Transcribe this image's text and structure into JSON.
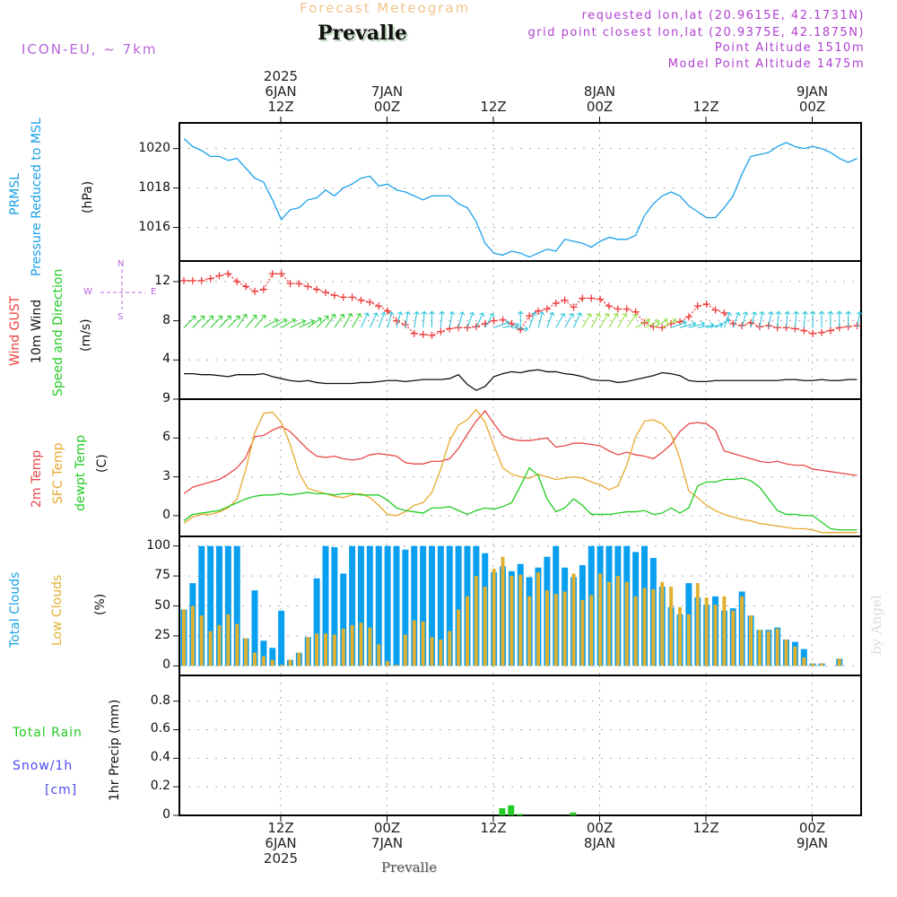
{
  "header": {
    "title": "Forecast Meteogram",
    "station": "Prevalle",
    "model": "ICON-EU, ~ 7km",
    "requested": "requested lon,lat (20.9615E, 42.1731N)",
    "gridpoint": "grid point closest lon,lat (20.9375E, 42.1875N)",
    "point_altitude": "Point Altitude 1510m",
    "model_altitude": "Model Point Altitude 1475m"
  },
  "top_axis": [
    {
      "l1": "2025",
      "l2": "6JAN",
      "l3": "12Z",
      "h": 12
    },
    {
      "l1": "",
      "l2": "7JAN",
      "l3": "00Z",
      "h": 24
    },
    {
      "l1": "",
      "l2": "",
      "l3": "12Z",
      "h": 36
    },
    {
      "l1": "",
      "l2": "8JAN",
      "l3": "00Z",
      "h": 48
    },
    {
      "l1": "",
      "l2": "",
      "l3": "12Z",
      "h": 60
    },
    {
      "l1": "",
      "l2": "9JAN",
      "l3": "00Z",
      "h": 72
    }
  ],
  "bottom_axis": [
    {
      "l1": "12Z",
      "l2": "6JAN",
      "l3": "2025",
      "h": 12
    },
    {
      "l1": "00Z",
      "l2": "7JAN",
      "l3": "",
      "h": 24
    },
    {
      "l1": "12Z",
      "l2": "",
      "l3": "",
      "h": 36
    },
    {
      "l1": "00Z",
      "l2": "8JAN",
      "l3": "",
      "h": 48
    },
    {
      "l1": "12Z",
      "l2": "",
      "l3": "",
      "h": 60
    },
    {
      "l1": "00Z",
      "l2": "9JAN",
      "l3": "",
      "h": 72
    }
  ],
  "footer_station": "Prevalle",
  "watermark": "by Angel",
  "labels": {
    "p1_a": "PRMSL",
    "p1_b": "Pressure Reduced to MSL",
    "p1_unit": "(hPa)",
    "p2_a": "Wind GUST",
    "p2_b": "10m Wind",
    "p2_c": "Speed and Direction",
    "p2_unit": "(m/s)",
    "compass": {
      "n": "N",
      "s": "S",
      "w": "W",
      "e": "E"
    },
    "p3_a": "2m Temp",
    "p3_b": "SFC Temp",
    "p3_c": "dewpt Temp",
    "p3_unit": "(C)",
    "p4_a": "Total Clouds",
    "p4_b": "Low Clouds",
    "p4_unit": "(%)",
    "p5_a": "Total   Rain",
    "p5_b": "Snow/1h",
    "p5_c": "[cm]",
    "p5_unit": "1hr Precip (mm)"
  },
  "colors": {
    "pressure": "#1aa0e8",
    "gust": "#f03c3c",
    "wind": "#111111",
    "t2m": "#e84848",
    "tsfc": "#e8a830",
    "dewpt": "#20cc20",
    "total_clouds": "#0aa0f0",
    "low_clouds": "#e0b030",
    "rain": "#22cc22"
  },
  "chart_data": [
    {
      "type": "line",
      "title": "PRMSL Pressure Reduced to MSL",
      "ylabel": "(hPa)",
      "ylim": [
        1014.3,
        1021.3
      ],
      "yticks": [
        1016,
        1018,
        1020
      ],
      "x_start_hour": 1,
      "x_step_hours": 1,
      "series": [
        {
          "name": "PRMSL",
          "values": [
            1020.5,
            1020.1,
            1019.9,
            1019.6,
            1019.6,
            1019.4,
            1019.5,
            1019.0,
            1018.5,
            1018.3,
            1017.4,
            1016.4,
            1016.9,
            1017.0,
            1017.4,
            1017.5,
            1017.9,
            1017.6,
            1018.0,
            1018.2,
            1018.5,
            1018.6,
            1018.1,
            1018.2,
            1017.9,
            1017.8,
            1017.6,
            1017.4,
            1017.6,
            1017.6,
            1017.6,
            1017.2,
            1017.0,
            1016.3,
            1015.2,
            1014.7,
            1014.6,
            1014.8,
            1014.7,
            1014.5,
            1014.7,
            1014.9,
            1014.8,
            1015.4,
            1015.3,
            1015.2,
            1015.0,
            1015.3,
            1015.5,
            1015.4,
            1015.4,
            1015.6,
            1016.6,
            1017.2,
            1017.6,
            1017.8,
            1017.6,
            1017.1,
            1016.8,
            1016.5,
            1016.5,
            1017.0,
            1017.6,
            1018.7,
            1019.6,
            1019.7,
            1019.8,
            1020.1,
            1020.3,
            1020.1,
            1020.0,
            1020.1,
            1020.0,
            1019.8,
            1019.5,
            1019.3,
            1019.5
          ]
        }
      ]
    },
    {
      "type": "line",
      "title": "Wind GUST / 10m Wind Speed and Direction",
      "ylabel": "(m/s)",
      "ylim": [
        0,
        14.1
      ],
      "yticks": [
        4,
        8,
        12
      ],
      "x_start_hour": 1,
      "x_step_hours": 1,
      "series": [
        {
          "name": "Wind GUST",
          "values": [
            12.1,
            12.1,
            12.1,
            12.3,
            12.6,
            12.8,
            12.0,
            11.5,
            11.0,
            11.2,
            12.8,
            12.8,
            11.8,
            11.8,
            11.5,
            11.2,
            10.9,
            10.6,
            10.4,
            10.4,
            10.1,
            9.9,
            9.5,
            9.0,
            8.0,
            7.6,
            6.7,
            6.6,
            6.5,
            6.9,
            7.2,
            7.3,
            7.3,
            7.4,
            7.7,
            8.0,
            8.1,
            7.7,
            7.1,
            8.5,
            9.0,
            9.2,
            9.8,
            10.1,
            9.4,
            10.3,
            10.3,
            10.2,
            9.5,
            9.2,
            9.2,
            8.9,
            7.8,
            7.4,
            7.3,
            7.7,
            7.9,
            8.4,
            9.5,
            9.7,
            9.1,
            8.8,
            7.7,
            7.5,
            7.8,
            7.4,
            7.5,
            7.3,
            7.3,
            7.2,
            7.0,
            6.7,
            6.8,
            7.0,
            7.3,
            7.4,
            7.5
          ]
        },
        {
          "name": "10m Wind",
          "values": [
            2.6,
            2.6,
            2.5,
            2.5,
            2.4,
            2.3,
            2.5,
            2.5,
            2.5,
            2.6,
            2.3,
            2.1,
            1.9,
            1.8,
            1.9,
            1.7,
            1.6,
            1.6,
            1.6,
            1.6,
            1.7,
            1.7,
            1.8,
            1.9,
            1.9,
            1.8,
            1.9,
            2.0,
            2.0,
            2.0,
            2.1,
            2.5,
            1.5,
            0.9,
            1.3,
            2.3,
            2.6,
            2.8,
            2.7,
            2.9,
            3.0,
            2.8,
            2.8,
            2.6,
            2.5,
            2.3,
            2.0,
            1.9,
            1.9,
            1.7,
            1.8,
            2.0,
            2.2,
            2.4,
            2.7,
            2.6,
            2.4,
            1.9,
            1.8,
            1.8,
            1.9,
            1.9,
            1.9,
            1.9,
            1.9,
            1.9,
            1.9,
            1.9,
            2.0,
            2.0,
            1.9,
            1.9,
            2.0,
            1.9,
            1.9,
            2.0,
            2.0
          ]
        }
      ]
    },
    {
      "type": "line",
      "title": "2m Temp / SFC Temp / dewpt Temp",
      "ylabel": "(C)",
      "ylim": [
        -1.6,
        9
      ],
      "yticks": [
        0,
        3,
        6,
        9
      ],
      "x_start_hour": 1,
      "x_step_hours": 1,
      "series": [
        {
          "name": "2m Temp",
          "values": [
            1.7,
            2.2,
            2.4,
            2.6,
            2.8,
            3.2,
            3.7,
            4.5,
            6.1,
            6.2,
            6.6,
            6.9,
            6.5,
            5.8,
            5.1,
            4.6,
            4.5,
            4.6,
            4.4,
            4.3,
            4.4,
            4.7,
            4.8,
            4.7,
            4.6,
            4.1,
            4.0,
            4.0,
            4.2,
            4.2,
            4.4,
            5.2,
            6.3,
            7.3,
            8.1,
            7.1,
            6.2,
            5.9,
            5.8,
            5.8,
            5.9,
            6.0,
            5.3,
            5.4,
            5.6,
            5.6,
            5.5,
            5.4,
            5.0,
            4.7,
            4.9,
            4.7,
            4.6,
            4.4,
            4.9,
            5.5,
            6.5,
            7.1,
            7.2,
            7.1,
            6.6,
            5.0,
            4.8,
            4.6,
            4.4,
            4.2,
            4.1,
            4.2,
            4.0,
            3.9,
            3.9,
            3.6,
            3.5,
            3.4,
            3.3,
            3.2,
            3.1
          ]
        },
        {
          "name": "SFC Temp",
          "values": [
            -0.6,
            -0.1,
            0.1,
            0.1,
            0.3,
            0.6,
            1.3,
            3.6,
            6.4,
            7.9,
            8.0,
            7.2,
            5.5,
            3.3,
            2.1,
            1.9,
            1.7,
            1.5,
            1.4,
            1.6,
            1.7,
            1.4,
            0.8,
            0.1,
            0.0,
            0.3,
            0.8,
            1.0,
            1.8,
            3.6,
            5.8,
            7.0,
            7.4,
            8.2,
            7.2,
            5.4,
            3.7,
            3.2,
            3.0,
            2.9,
            3.2,
            3.0,
            2.8,
            2.9,
            3.0,
            2.9,
            2.6,
            2.4,
            2.0,
            2.3,
            3.9,
            6.1,
            7.3,
            7.4,
            7.1,
            6.3,
            4.4,
            1.9,
            1.4,
            0.8,
            0.4,
            0.1,
            -0.1,
            -0.3,
            -0.4,
            -0.6,
            -0.7,
            -0.8,
            -0.9,
            -1.0,
            -1.0,
            -1.1,
            -1.3,
            -1.3,
            -1.3,
            -1.3,
            -1.3
          ]
        },
        {
          "name": "dewpt Temp",
          "values": [
            -0.4,
            0.1,
            0.2,
            0.3,
            0.4,
            0.7,
            1.0,
            1.3,
            1.5,
            1.6,
            1.6,
            1.7,
            1.6,
            1.7,
            1.8,
            1.7,
            1.7,
            1.6,
            1.7,
            1.7,
            1.6,
            1.6,
            1.6,
            1.2,
            0.6,
            0.4,
            0.3,
            0.2,
            0.6,
            0.6,
            0.7,
            0.4,
            0.1,
            0.4,
            0.6,
            0.5,
            0.7,
            1.0,
            2.3,
            3.7,
            3.1,
            1.3,
            0.3,
            0.6,
            1.3,
            0.8,
            0.1,
            0.1,
            0.1,
            0.2,
            0.3,
            0.3,
            0.4,
            0.1,
            0.2,
            0.6,
            0.2,
            0.6,
            2.3,
            2.6,
            2.6,
            2.8,
            2.8,
            2.9,
            2.7,
            2.2,
            1.3,
            0.4,
            0.1,
            0.1,
            0.0,
            0.0,
            -0.5,
            -1.0,
            -1.1,
            -1.1,
            -1.1
          ]
        }
      ]
    },
    {
      "type": "bar",
      "title": "Total Clouds / Low Clouds",
      "ylabel": "(%)",
      "ylim": [
        -8,
        108
      ],
      "yticks": [
        0,
        25,
        50,
        75,
        100
      ],
      "x_start_hour": 1,
      "x_step_hours": 1,
      "series": [
        {
          "name": "Total Clouds",
          "values": [
            47,
            69,
            100,
            100,
            100,
            100,
            100,
            23,
            63,
            21,
            15,
            46,
            5,
            11,
            24,
            73,
            100,
            99,
            77,
            100,
            100,
            100,
            100,
            100,
            100,
            97,
            100,
            100,
            100,
            100,
            100,
            100,
            100,
            100,
            94,
            78,
            83,
            79,
            85,
            74,
            82,
            91,
            100,
            82,
            74,
            84,
            100,
            100,
            100,
            100,
            100,
            95,
            100,
            90,
            66,
            49,
            43,
            69,
            57,
            51,
            58,
            46,
            48,
            62,
            42,
            30,
            30,
            32,
            22,
            20,
            14,
            2,
            2,
            0,
            6
          ]
        },
        {
          "name": "Low Clouds",
          "values": [
            47,
            50,
            42,
            29,
            34,
            43,
            35,
            23,
            11,
            8,
            5,
            1,
            5,
            11,
            24,
            27,
            27,
            26,
            31,
            34,
            36,
            32,
            18,
            4,
            1,
            26,
            38,
            37,
            24,
            22,
            29,
            47,
            58,
            75,
            66,
            81,
            91,
            75,
            76,
            58,
            78,
            63,
            60,
            62,
            77,
            55,
            59,
            77,
            70,
            75,
            70,
            58,
            65,
            64,
            70,
            66,
            49,
            43,
            69,
            57,
            51,
            58,
            46,
            58,
            42,
            30,
            29,
            31,
            22,
            16,
            7,
            2,
            2,
            0,
            6
          ]
        }
      ]
    },
    {
      "type": "bar",
      "title": "1hr Precip",
      "ylabel": "1hr Precip (mm)",
      "ylim": [
        0,
        0.98
      ],
      "yticks": [
        0,
        0.2,
        0.4,
        0.6,
        0.8
      ],
      "series": [
        {
          "name": "Total Rain",
          "points": [
            {
              "h": 37,
              "v": 0.05
            },
            {
              "h": 38,
              "v": 0.07
            },
            {
              "h": 39,
              "v": 0.01
            },
            {
              "h": 45,
              "v": 0.02
            }
          ]
        }
      ]
    }
  ]
}
